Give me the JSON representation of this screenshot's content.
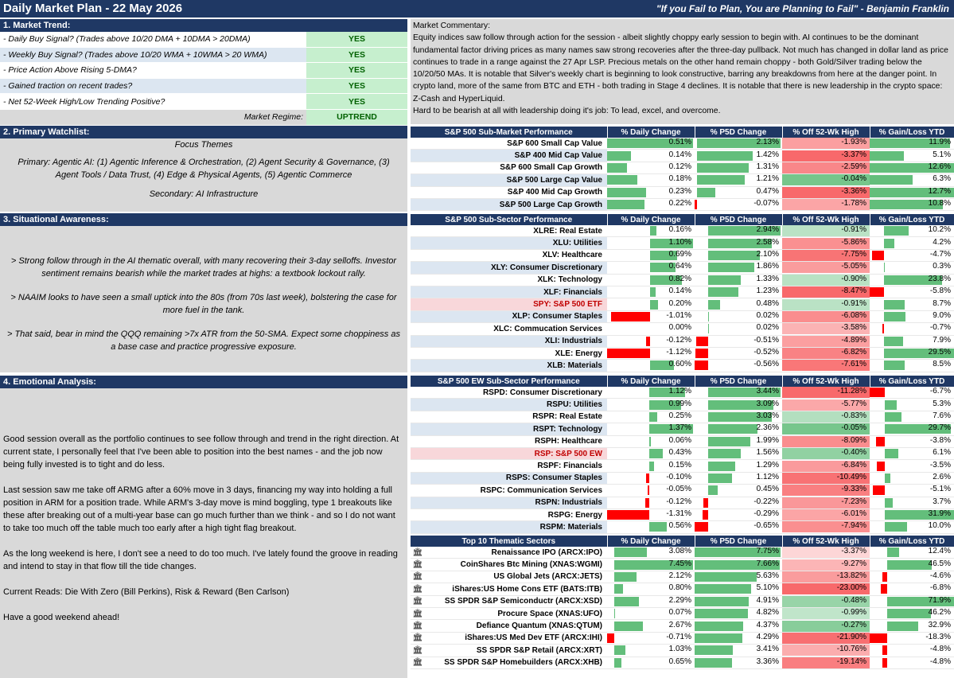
{
  "header": {
    "title": "Daily Market Plan - 22 May 2026",
    "quote": "\"If you Fail to Plan, You are Planning to Fail\" - Benjamin Franklin"
  },
  "market_trend": {
    "heading": "1. Market Trend:",
    "rows": [
      {
        "label": "-  Daily Buy Signal? (Trades above 10/20 DMA + 10DMA > 20DMA)",
        "value": "YES"
      },
      {
        "label": "-  Weekly Buy Signal? (Trades above 10/20 WMA + 10WMA > 20 WMA)",
        "value": "YES"
      },
      {
        "label": "-  Price Action Above Rising 5-DMA?",
        "value": "YES"
      },
      {
        "label": "-  Gained traction on recent trades?",
        "value": "YES"
      },
      {
        "label": "-  Net 52-Week High/Low Trending Positive?",
        "value": "YES"
      }
    ],
    "regime_label": "Market Regime:",
    "regime_value": "UPTREND"
  },
  "commentary": {
    "heading": "Market Commentary:",
    "body": "Equity indices saw follow through action for the session - albeit slightly choppy early session to begin with. AI continues to be the dominant fundamental factor driving prices as many names saw strong recoveries after the three-day pullback. Not much has changed in dollar land as price continues to trade in a range against the 27 Apr LSP. Precious metals on the other hand remain choppy - both Gold/Silver trading below the 10/20/50 MAs. It is notable that Silver's weekly chart is beginning to look constructive, barring any breakdowns from here at the danger point. In crypto land, more of the same from BTC and ETH - both trading in Stage 4 declines. It is notable that there is new leadership in the crypto space: Z-Cash and HyperLiquid.",
    "closing": "Hard to be bearish at all with leadership doing it's job: To lead, excel, and overcome."
  },
  "watchlist": {
    "heading": "2. Primary Watchlist:",
    "focus_title": "Focus Themes",
    "primary": "Primary: Agentic AI: (1) Agentic Inference & Orchestration, (2) Agent Security & Governance, (3) Agent Tools / Data Trust, (4) Edge & Physical Agents, (5) Agentic Commerce",
    "secondary": "Secondary: AI Infrastructure"
  },
  "situational": {
    "heading": "3. Situational Awareness:",
    "p1": "> Strong follow through in the AI thematic overall, with many recovering their 3-day selloffs. Investor sentiment remains bearish while the market trades at highs: a textbook lockout rally.",
    "p2": "> NAAIM looks to have seen a small uptick into the 80s (from 70s last week), bolstering the case for more fuel in the tank.",
    "p3": "> That said, bear in mind the QQQ remaining >7x ATR from the 50-SMA. Expect some choppiness as a base case and practice progressive exposure."
  },
  "emotional": {
    "heading": "4. Emotional Analysis:",
    "p1": "Good session overall as the portfolio continues to see follow through and trend in the right direction. At current state, I personally feel that I've been able to position into the best names - and the job now being fully invested is to tight and do less.",
    "p2": "Last session saw me take off ARMG after a 60% move in 3 days, financing my way into holding a full position in ARM for a position trade. While ARM's 3-day move is mind boggling, type 1 breakouts like these after breaking out of a multi-year base can go much further than we think - and so I do not want to take too much off the table much too early after a high tight flag breakout.",
    "p3": "As the long weekend is here, I don't see a need to do too much. I've lately found the groove in reading and intend to stay in that flow till the tide changes.",
    "p4": "Current Reads: Die With Zero (Bill Perkins), Risk & Reward (Ben Carlson)",
    "p5": "Have a good weekend ahead!"
  },
  "colors": {
    "header": "#1f3864",
    "pos_bar": "#63be7b",
    "neg_bar": "#ff0000",
    "neg_high": "#f8696b",
    "neg_low": "#fce4e4"
  },
  "col_headers": [
    "% Daily Change",
    "% P5D Change",
    "% Off 52-Wk High",
    "% Gain/Loss YTD"
  ],
  "tables": [
    {
      "title": "S&P 500 Sub-Market Performance",
      "rows": [
        {
          "name": "S&P 600 Small Cap Value",
          "d": "0.51%",
          "p5": "2.13%",
          "off": "-1.93%",
          "ytd": "11.9%"
        },
        {
          "name": "S&P 400 Mid Cap Value",
          "d": "0.14%",
          "p5": "1.42%",
          "off": "-3.37%",
          "ytd": "5.1%"
        },
        {
          "name": "S&P 600 Small Cap Growth",
          "d": "0.12%",
          "p5": "1.31%",
          "off": "-2.59%",
          "ytd": "12.6%"
        },
        {
          "name": "S&P 500 Large Cap Value",
          "d": "0.18%",
          "p5": "1.21%",
          "off": "-0.04%",
          "ytd": "6.3%"
        },
        {
          "name": "S&P 400 Mid Cap Growth",
          "d": "0.23%",
          "p5": "0.47%",
          "off": "-3.36%",
          "ytd": "12.7%"
        },
        {
          "name": "S&P 500 Large Cap Growth",
          "d": "0.22%",
          "p5": "-0.07%",
          "off": "-1.78%",
          "ytd": "10.8%"
        }
      ]
    },
    {
      "title": "S&P 500 Sub-Sector Performance",
      "rows": [
        {
          "name": "XLRE: Real Estate",
          "d": "0.16%",
          "p5": "2.94%",
          "off": "-0.91%",
          "ytd": "10.2%"
        },
        {
          "name": "XLU: Utilities",
          "d": "1.10%",
          "p5": "2.58%",
          "off": "-5.86%",
          "ytd": "4.2%"
        },
        {
          "name": "XLV: Healthcare",
          "d": "0.69%",
          "p5": "2.10%",
          "off": "-7.75%",
          "ytd": "-4.7%"
        },
        {
          "name": "XLY: Consumer Discretionary",
          "d": "0.64%",
          "p5": "1.86%",
          "off": "-5.05%",
          "ytd": "0.3%"
        },
        {
          "name": "XLK: Technology",
          "d": "0.82%",
          "p5": "1.33%",
          "off": "-0.90%",
          "ytd": "23.8%"
        },
        {
          "name": "XLF: Financials",
          "d": "0.14%",
          "p5": "1.23%",
          "off": "-8.47%",
          "ytd": "-5.8%"
        },
        {
          "name": "SPY: S&P 500 ETF",
          "d": "0.20%",
          "p5": "0.48%",
          "off": "-0.91%",
          "ytd": "8.7%",
          "hl": true
        },
        {
          "name": "XLP: Consumer Staples",
          "d": "-1.01%",
          "p5": "0.02%",
          "off": "-6.08%",
          "ytd": "9.0%"
        },
        {
          "name": "XLC: Commucation Services",
          "d": "0.00%",
          "p5": "0.02%",
          "off": "-3.58%",
          "ytd": "-0.7%"
        },
        {
          "name": "XLI: Industrials",
          "d": "-0.12%",
          "p5": "-0.51%",
          "off": "-4.89%",
          "ytd": "7.9%"
        },
        {
          "name": "XLE: Energy",
          "d": "-1.12%",
          "p5": "-0.52%",
          "off": "-6.82%",
          "ytd": "29.5%"
        },
        {
          "name": "XLB: Materials",
          "d": "0.60%",
          "p5": "-0.56%",
          "off": "-7.61%",
          "ytd": "8.5%"
        }
      ]
    },
    {
      "title": "S&P 500 EW Sub-Sector Performance",
      "rows": [
        {
          "name": "RSPD: Consumer Discretionary",
          "d": "1.12%",
          "p5": "3.44%",
          "off": "-11.28%",
          "ytd": "-6.7%"
        },
        {
          "name": "RSPU: Utilities",
          "d": "0.99%",
          "p5": "3.09%",
          "off": "-5.77%",
          "ytd": "5.3%"
        },
        {
          "name": "RSPR: Real Estate",
          "d": "0.25%",
          "p5": "3.03%",
          "off": "-0.83%",
          "ytd": "7.6%"
        },
        {
          "name": "RSPT: Technology",
          "d": "1.37%",
          "p5": "2.36%",
          "off": "-0.05%",
          "ytd": "29.7%"
        },
        {
          "name": "RSPH: Healthcare",
          "d": "0.06%",
          "p5": "1.99%",
          "off": "-8.09%",
          "ytd": "-3.8%"
        },
        {
          "name": "RSP: S&P 500 EW",
          "d": "0.43%",
          "p5": "1.56%",
          "off": "-0.40%",
          "ytd": "6.1%",
          "hl": true
        },
        {
          "name": "RSPF: Financials",
          "d": "0.15%",
          "p5": "1.29%",
          "off": "-6.84%",
          "ytd": "-3.5%"
        },
        {
          "name": "RSPS: Consumer Staples",
          "d": "-0.10%",
          "p5": "1.12%",
          "off": "-10.49%",
          "ytd": "2.6%"
        },
        {
          "name": "RSPC: Communication Services",
          "d": "-0.05%",
          "p5": "0.45%",
          "off": "-9.33%",
          "ytd": "-5.1%"
        },
        {
          "name": "RSPN: Industrials",
          "d": "-0.12%",
          "p5": "-0.22%",
          "off": "-7.23%",
          "ytd": "3.7%"
        },
        {
          "name": "RSPG: Energy",
          "d": "-1.31%",
          "p5": "-0.29%",
          "off": "-6.01%",
          "ytd": "31.9%"
        },
        {
          "name": "RSPM: Materials",
          "d": "0.56%",
          "p5": "-0.65%",
          "off": "-7.94%",
          "ytd": "10.0%"
        }
      ]
    },
    {
      "title": "Top 10 Thematic Sectors",
      "icon": "bank-icon",
      "rows": [
        {
          "name": "Renaissance IPO (ARCX:IPO)",
          "d": "3.08%",
          "p5": "7.75%",
          "off": "-3.37%",
          "ytd": "12.4%"
        },
        {
          "name": "CoinShares Btc Mining (XNAS:WGMI)",
          "d": "7.45%",
          "p5": "7.66%",
          "off": "-9.27%",
          "ytd": "46.5%"
        },
        {
          "name": "US Global Jets (ARCX:JETS)",
          "d": "2.12%",
          "p5": "5.63%",
          "off": "-13.82%",
          "ytd": "-4.6%"
        },
        {
          "name": "iShares:US Home Cons ETF (BATS:ITB)",
          "d": "0.80%",
          "p5": "5.10%",
          "off": "-23.00%",
          "ytd": "-6.8%"
        },
        {
          "name": "SS SPDR S&P Semiconductr (ARCX:XSD)",
          "d": "2.29%",
          "p5": "4.91%",
          "off": "-0.48%",
          "ytd": "71.9%"
        },
        {
          "name": "Procure Space (XNAS:UFO)",
          "d": "0.07%",
          "p5": "4.82%",
          "off": "-0.99%",
          "ytd": "46.2%"
        },
        {
          "name": "Defiance Quantum (XNAS:QTUM)",
          "d": "2.67%",
          "p5": "4.37%",
          "off": "-0.27%",
          "ytd": "32.9%"
        },
        {
          "name": "iShares:US Med Dev ETF (ARCX:IHI)",
          "d": "-0.71%",
          "p5": "4.29%",
          "off": "-21.90%",
          "ytd": "-18.3%"
        },
        {
          "name": "SS SPDR S&P Retail (ARCX:XRT)",
          "d": "1.03%",
          "p5": "3.41%",
          "off": "-10.76%",
          "ytd": "-4.8%"
        },
        {
          "name": "SS SPDR S&P Homebuilders (ARCX:XHB)",
          "d": "0.65%",
          "p5": "3.36%",
          "off": "-19.14%",
          "ytd": "-4.8%"
        }
      ]
    }
  ]
}
